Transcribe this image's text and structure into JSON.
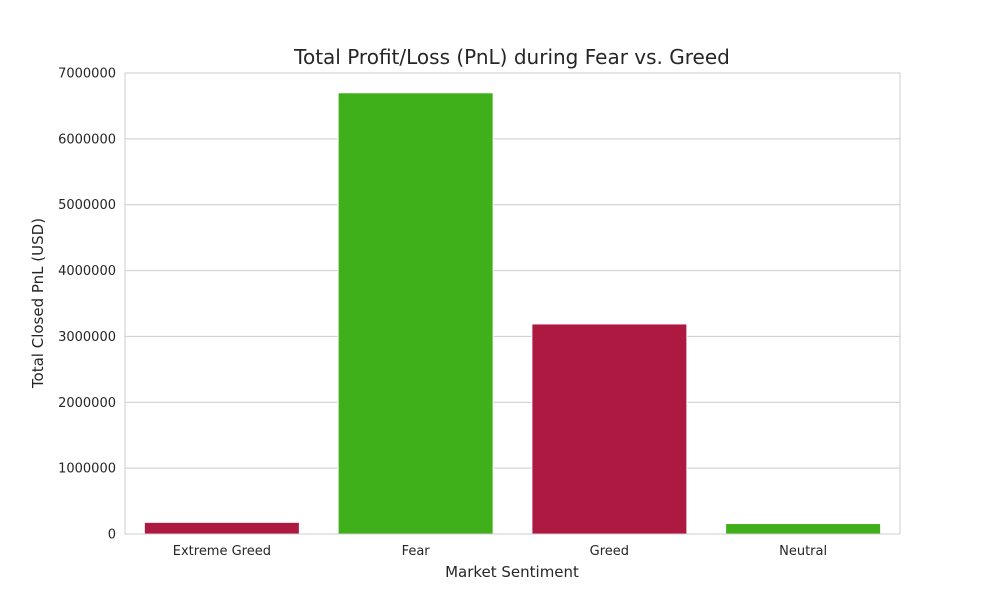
{
  "chart_data": {
    "type": "bar",
    "title": "Total Profit/Loss (PnL) during Fear vs. Greed",
    "xlabel": "Market Sentiment",
    "ylabel": "Total Closed PnL (USD)",
    "categories": [
      "Extreme Greed",
      "Fear",
      "Greed",
      "Neutral"
    ],
    "values": [
      176965,
      6699925,
      3189617,
      158742
    ],
    "bar_colors": [
      "#ae1942",
      "#3faf1a",
      "#ae1942",
      "#3faf1a"
    ],
    "ylim": [
      0,
      7000000
    ],
    "yticks": [
      0,
      1000000,
      2000000,
      3000000,
      4000000,
      5000000,
      6000000,
      7000000
    ],
    "ytick_labels": [
      "0",
      "1000000",
      "2000000",
      "3000000",
      "4000000",
      "5000000",
      "6000000",
      "7000000"
    ],
    "grid": "y",
    "legend": "none"
  }
}
